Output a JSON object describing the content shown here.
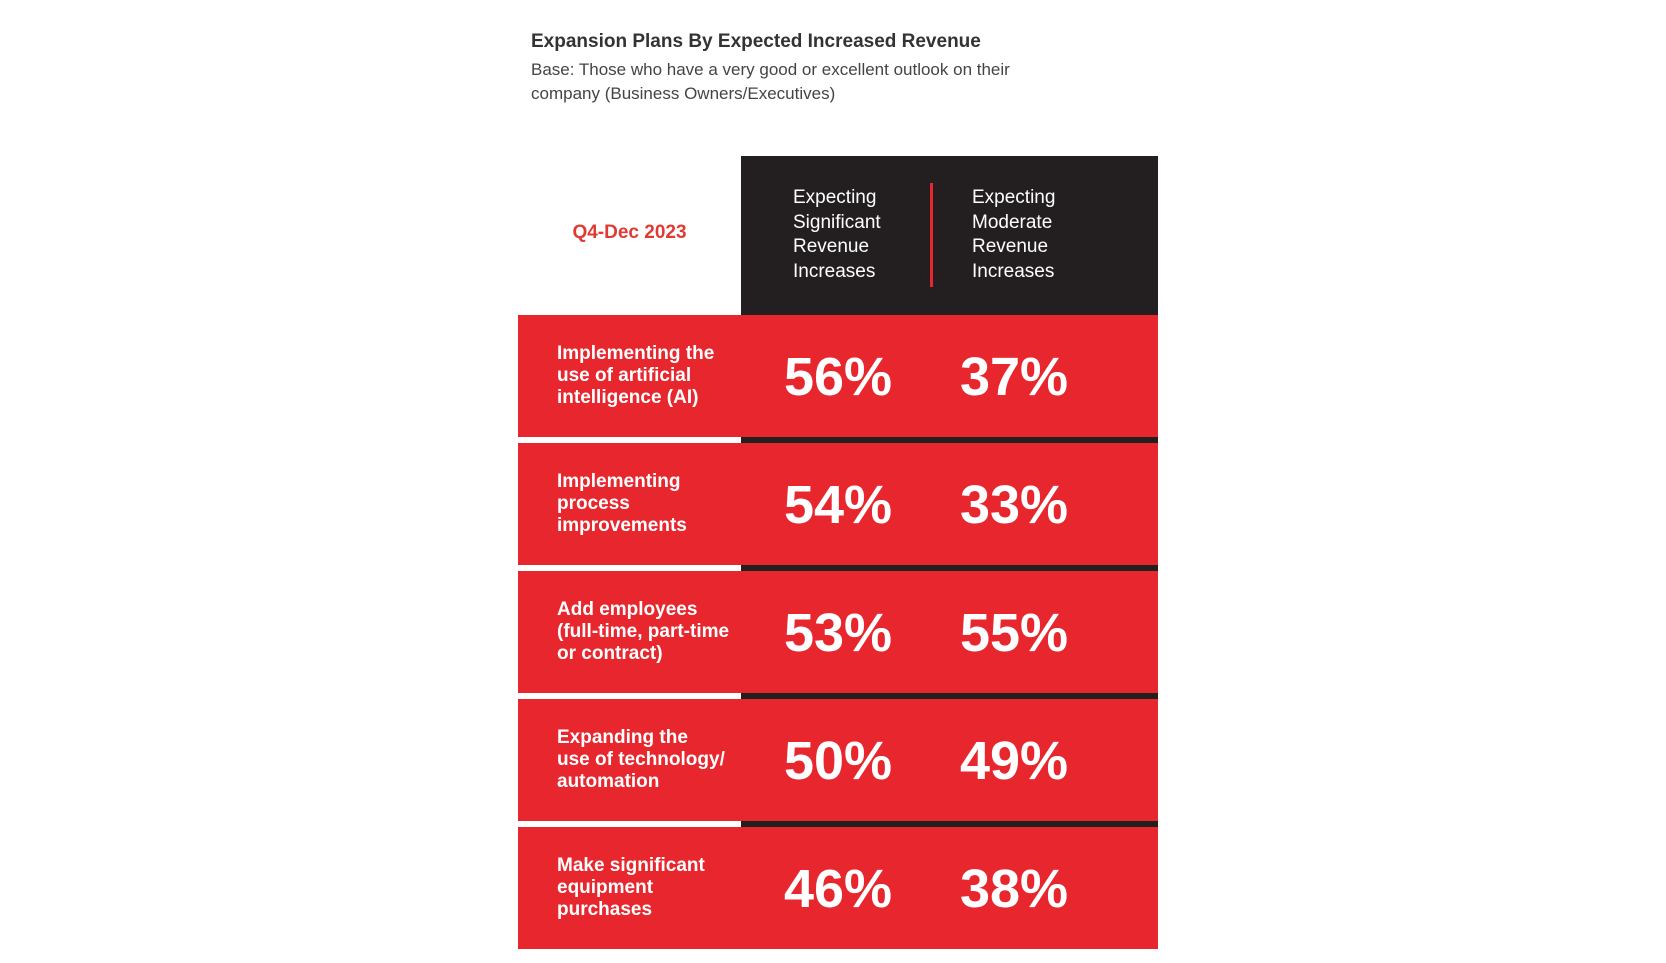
{
  "header": {
    "title": "Expansion Plans By Expected Increased Revenue",
    "subtitle": "Base: Those who have a very good or excellent outlook on their company (Business Owners/Executives)"
  },
  "table": {
    "period": "Q4-Dec 2023",
    "columns": [
      "Expecting Significant Revenue Increases",
      "Expecting Moderate Revenue Increases"
    ],
    "rows": [
      {
        "label": [
          "Implementing the",
          "use of artificial",
          "intelligence (AI)"
        ],
        "values": [
          "56%",
          "37%"
        ]
      },
      {
        "label": [
          "Implementing",
          "process",
          "improvements"
        ],
        "values": [
          "54%",
          "33%"
        ]
      },
      {
        "label": [
          "Add employees",
          "(full-time, part-time",
          "or contract)"
        ],
        "values": [
          "53%",
          "55%"
        ]
      },
      {
        "label": [
          "Expanding the",
          "use of technology/",
          "automation"
        ],
        "values": [
          "50%",
          "49%"
        ]
      },
      {
        "label": [
          "Make significant",
          "equipment",
          "purchases"
        ],
        "values": [
          "46%",
          "38%"
        ]
      }
    ]
  }
}
